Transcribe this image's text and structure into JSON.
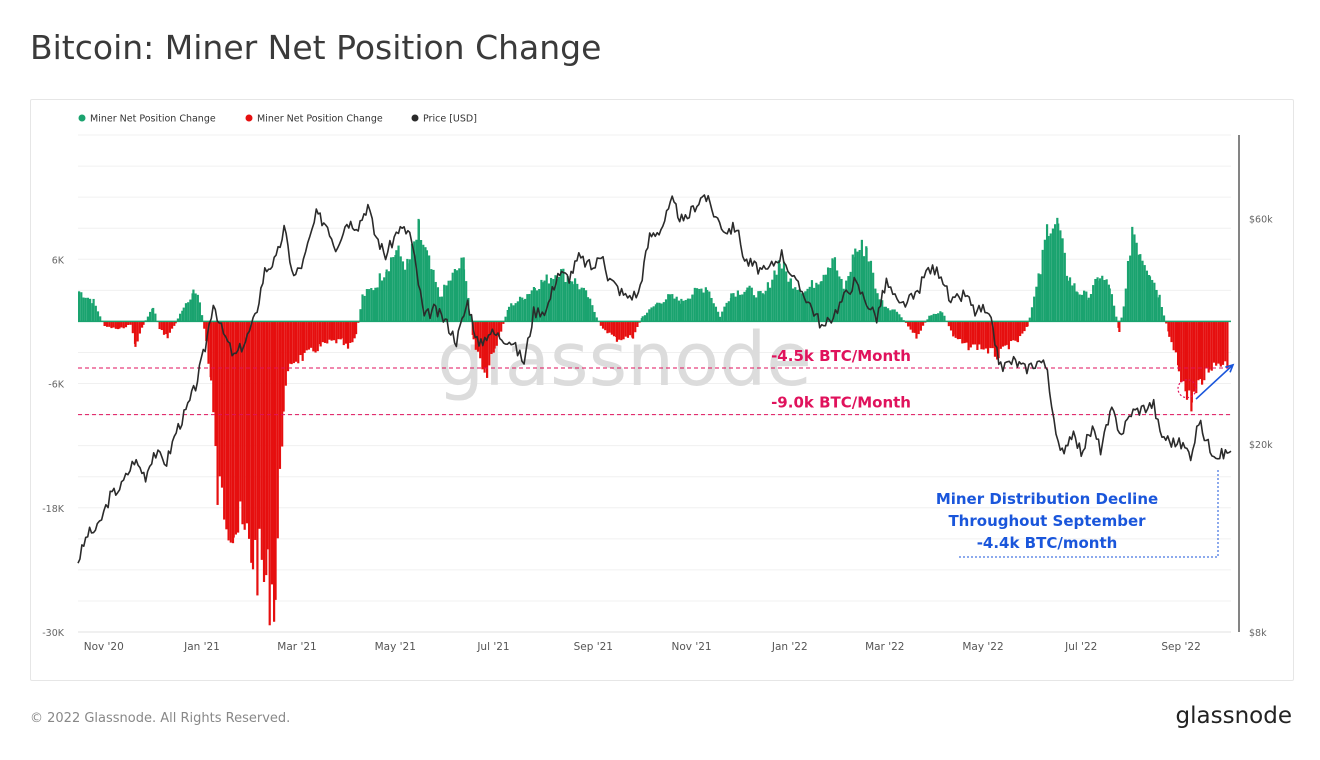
{
  "page": {
    "title": "Bitcoin: Miner Net Position Change",
    "copyright": "© 2022 Glassnode. All Rights Reserved.",
    "brand": "glassnode",
    "watermark": "glassnode"
  },
  "colors": {
    "positive": "#1aa36f",
    "negative": "#e60f0f",
    "price": "#2b2b2b",
    "annotation_pink": "#e0125c",
    "annotation_blue": "#1a56db"
  },
  "chart_data": {
    "type": "bar",
    "legend": [
      {
        "name": "Miner Net Position Change",
        "color": "#1aa36f"
      },
      {
        "name": "Miner Net Position Change",
        "color": "#e60f0f"
      },
      {
        "name": "Price [USD]",
        "color": "#2b2b2b"
      }
    ],
    "legend_position": "top-left",
    "x_range": [
      "2020-10-16",
      "2022-10-02"
    ],
    "x_ticks": [
      "Nov '20",
      "Jan '21",
      "Mar '21",
      "May '21",
      "Jul '21",
      "Sep '21",
      "Nov '21",
      "Jan '22",
      "Mar '22",
      "May '22",
      "Jul '22",
      "Sep '22"
    ],
    "x_tick_dates": [
      "2020-11-01",
      "2021-01-01",
      "2021-03-01",
      "2021-05-01",
      "2021-07-01",
      "2021-09-01",
      "2021-11-01",
      "2022-01-01",
      "2022-03-01",
      "2022-05-01",
      "2022-07-01",
      "2022-09-01"
    ],
    "left_axis": {
      "ticks": [
        "6K",
        "-6K",
        "-18K",
        "-30K"
      ],
      "tick_values": [
        6000,
        -6000,
        -18000,
        -30000
      ],
      "range": [
        -30000,
        18000
      ]
    },
    "right_axis": {
      "scale": "log",
      "ticks": [
        "$60k",
        "$20k",
        "$8k"
      ],
      "tick_values": [
        60000,
        20000,
        8000
      ],
      "range": [
        8000,
        90000
      ]
    },
    "grid": true,
    "net_position": [
      [
        "2020-10-16",
        3000
      ],
      [
        "2020-10-25",
        2000
      ],
      [
        "2020-11-01",
        -500
      ],
      [
        "2020-11-10",
        -800
      ],
      [
        "2020-11-17",
        -300
      ],
      [
        "2020-11-20",
        -2500
      ],
      [
        "2020-11-25",
        -300
      ],
      [
        "2020-12-01",
        1500
      ],
      [
        "2020-12-05",
        -800
      ],
      [
        "2020-12-10",
        -1500
      ],
      [
        "2020-12-15",
        -200
      ],
      [
        "2020-12-20",
        1500
      ],
      [
        "2020-12-26",
        3000
      ],
      [
        "2020-12-30",
        2000
      ],
      [
        "2021-01-03",
        -2000
      ],
      [
        "2021-01-06",
        -6000
      ],
      [
        "2021-01-10",
        -17000
      ],
      [
        "2021-01-20",
        -20000
      ],
      [
        "2021-02-01",
        -23000
      ],
      [
        "2021-02-10",
        -26000
      ],
      [
        "2021-02-15",
        -27000
      ],
      [
        "2021-02-20",
        -8000
      ],
      [
        "2021-02-25",
        -4000
      ],
      [
        "2021-03-05",
        -3500
      ],
      [
        "2021-03-15",
        -2500
      ],
      [
        "2021-03-22",
        -2000
      ],
      [
        "2021-03-28",
        -2000
      ],
      [
        "2021-04-01",
        -2800
      ],
      [
        "2021-04-06",
        -1500
      ],
      [
        "2021-04-10",
        2500
      ],
      [
        "2021-04-18",
        3500
      ],
      [
        "2021-04-25",
        5500
      ],
      [
        "2021-05-01",
        7000
      ],
      [
        "2021-05-08",
        5500
      ],
      [
        "2021-05-15",
        9000
      ],
      [
        "2021-05-20",
        6500
      ],
      [
        "2021-05-28",
        2500
      ],
      [
        "2021-06-05",
        4500
      ],
      [
        "2021-06-12",
        6000
      ],
      [
        "2021-06-18",
        -2000
      ],
      [
        "2021-06-25",
        -5500
      ],
      [
        "2021-07-01",
        -3000
      ],
      [
        "2021-07-10",
        1500
      ],
      [
        "2021-07-20",
        2500
      ],
      [
        "2021-07-26",
        3500
      ],
      [
        "2021-08-01",
        4000
      ],
      [
        "2021-08-10",
        5000
      ],
      [
        "2021-08-20",
        4000
      ],
      [
        "2021-08-28",
        2500
      ],
      [
        "2021-09-05",
        -500
      ],
      [
        "2021-09-15",
        -1800
      ],
      [
        "2021-09-25",
        -1500
      ],
      [
        "2021-10-01",
        500
      ],
      [
        "2021-10-10",
        1800
      ],
      [
        "2021-10-18",
        2500
      ],
      [
        "2021-10-25",
        2000
      ],
      [
        "2021-11-01",
        2800
      ],
      [
        "2021-11-10",
        3500
      ],
      [
        "2021-11-18",
        500
      ],
      [
        "2021-11-25",
        2800
      ],
      [
        "2021-12-05",
        3200
      ],
      [
        "2021-12-15",
        2500
      ],
      [
        "2021-12-25",
        6000
      ],
      [
        "2022-01-01",
        4000
      ],
      [
        "2022-01-10",
        3000
      ],
      [
        "2022-01-20",
        4500
      ],
      [
        "2022-01-27",
        6500
      ],
      [
        "2022-02-03",
        3000
      ],
      [
        "2022-02-10",
        7000
      ],
      [
        "2022-02-17",
        7500
      ],
      [
        "2022-02-24",
        2500
      ],
      [
        "2022-03-01",
        1500
      ],
      [
        "2022-03-08",
        1000
      ],
      [
        "2022-03-15",
        -500
      ],
      [
        "2022-03-20",
        -1500
      ],
      [
        "2022-03-28",
        500
      ],
      [
        "2022-04-05",
        1000
      ],
      [
        "2022-04-12",
        -1500
      ],
      [
        "2022-04-20",
        -2500
      ],
      [
        "2022-04-28",
        -2500
      ],
      [
        "2022-05-05",
        -3000
      ],
      [
        "2022-05-10",
        -3500
      ],
      [
        "2022-05-15",
        -2500
      ],
      [
        "2022-05-22",
        -2000
      ],
      [
        "2022-05-28",
        -500
      ],
      [
        "2022-06-05",
        5000
      ],
      [
        "2022-06-10",
        10000
      ],
      [
        "2022-06-16",
        9500
      ],
      [
        "2022-06-22",
        4500
      ],
      [
        "2022-06-28",
        3000
      ],
      [
        "2022-07-05",
        2500
      ],
      [
        "2022-07-12",
        4500
      ],
      [
        "2022-07-18",
        3500
      ],
      [
        "2022-07-24",
        -1000
      ],
      [
        "2022-07-28",
        3000
      ],
      [
        "2022-08-01",
        9500
      ],
      [
        "2022-08-06",
        7000
      ],
      [
        "2022-08-12",
        5000
      ],
      [
        "2022-08-18",
        2500
      ],
      [
        "2022-08-24",
        -1500
      ],
      [
        "2022-08-30",
        -4500
      ],
      [
        "2022-09-04",
        -7500
      ],
      [
        "2022-09-07",
        -8000
      ],
      [
        "2022-09-12",
        -6500
      ],
      [
        "2022-09-18",
        -4500
      ],
      [
        "2022-09-25",
        -4000
      ],
      [
        "2022-09-30",
        -4200
      ]
    ],
    "price": [
      [
        "2020-10-16",
        11300
      ],
      [
        "2020-10-22",
        12900
      ],
      [
        "2020-10-28",
        13200
      ],
      [
        "2020-11-05",
        15500
      ],
      [
        "2020-11-12",
        16300
      ],
      [
        "2020-11-20",
        18500
      ],
      [
        "2020-11-27",
        17100
      ],
      [
        "2020-12-02",
        19200
      ],
      [
        "2020-12-10",
        18300
      ],
      [
        "2020-12-16",
        21300
      ],
      [
        "2020-12-22",
        23400
      ],
      [
        "2020-12-28",
        26500
      ],
      [
        "2021-01-03",
        32000
      ],
      [
        "2021-01-08",
        40000
      ],
      [
        "2021-01-13",
        35000
      ],
      [
        "2021-01-21",
        30500
      ],
      [
        "2021-01-28",
        33000
      ],
      [
        "2021-02-03",
        37000
      ],
      [
        "2021-02-09",
        46500
      ],
      [
        "2021-02-16",
        49000
      ],
      [
        "2021-02-21",
        57000
      ],
      [
        "2021-02-27",
        45000
      ],
      [
        "2021-03-05",
        48500
      ],
      [
        "2021-03-13",
        61000
      ],
      [
        "2021-03-20",
        58000
      ],
      [
        "2021-03-25",
        52000
      ],
      [
        "2021-04-01",
        59000
      ],
      [
        "2021-04-08",
        58000
      ],
      [
        "2021-04-14",
        64000
      ],
      [
        "2021-04-18",
        56000
      ],
      [
        "2021-04-25",
        50000
      ],
      [
        "2021-05-03",
        57000
      ],
      [
        "2021-05-10",
        56000
      ],
      [
        "2021-05-13",
        49000
      ],
      [
        "2021-05-19",
        37000
      ],
      [
        "2021-05-25",
        38500
      ],
      [
        "2021-06-01",
        36500
      ],
      [
        "2021-06-08",
        33000
      ],
      [
        "2021-06-15",
        40000
      ],
      [
        "2021-06-22",
        32000
      ],
      [
        "2021-06-28",
        34500
      ],
      [
        "2021-07-05",
        33800
      ],
      [
        "2021-07-12",
        33000
      ],
      [
        "2021-07-20",
        29800
      ],
      [
        "2021-07-26",
        38000
      ],
      [
        "2021-08-03",
        38500
      ],
      [
        "2021-08-10",
        46000
      ],
      [
        "2021-08-17",
        45000
      ],
      [
        "2021-08-23",
        49500
      ],
      [
        "2021-09-01",
        47000
      ],
      [
        "2021-09-07",
        51000
      ],
      [
        "2021-09-10",
        45000
      ],
      [
        "2021-09-21",
        41000
      ],
      [
        "2021-09-29",
        41500
      ],
      [
        "2021-10-06",
        55000
      ],
      [
        "2021-10-13",
        57000
      ],
      [
        "2021-10-20",
        65000
      ],
      [
        "2021-10-27",
        58500
      ],
      [
        "2021-11-02",
        63000
      ],
      [
        "2021-11-09",
        67500
      ],
      [
        "2021-11-16",
        60500
      ],
      [
        "2021-11-22",
        56500
      ],
      [
        "2021-11-29",
        57500
      ],
      [
        "2021-12-04",
        49000
      ],
      [
        "2021-12-10",
        47500
      ],
      [
        "2021-12-17",
        46000
      ],
      [
        "2021-12-27",
        50500
      ],
      [
        "2022-01-05",
        43500
      ],
      [
        "2022-01-10",
        41500
      ],
      [
        "2022-01-22",
        35000
      ],
      [
        "2022-01-28",
        37500
      ],
      [
        "2022-02-05",
        41500
      ],
      [
        "2022-02-10",
        44000
      ],
      [
        "2022-02-24",
        37000
      ],
      [
        "2022-03-02",
        44000
      ],
      [
        "2022-03-10",
        39000
      ],
      [
        "2022-03-20",
        41000
      ],
      [
        "2022-03-28",
        47000
      ],
      [
        "2022-04-05",
        46000
      ],
      [
        "2022-04-11",
        39500
      ],
      [
        "2022-04-20",
        41500
      ],
      [
        "2022-04-26",
        38000
      ],
      [
        "2022-05-01",
        38500
      ],
      [
        "2022-05-06",
        36000
      ],
      [
        "2022-05-12",
        29000
      ],
      [
        "2022-05-20",
        30000
      ],
      [
        "2022-05-27",
        28800
      ],
      [
        "2022-06-05",
        30000
      ],
      [
        "2022-06-10",
        29000
      ],
      [
        "2022-06-14",
        22000
      ],
      [
        "2022-06-18",
        19000
      ],
      [
        "2022-06-25",
        21000
      ],
      [
        "2022-07-01",
        19300
      ],
      [
        "2022-07-08",
        21500
      ],
      [
        "2022-07-13",
        19500
      ],
      [
        "2022-07-20",
        23500
      ],
      [
        "2022-07-26",
        21000
      ],
      [
        "2022-08-01",
        23300
      ],
      [
        "2022-08-10",
        23900
      ],
      [
        "2022-08-15",
        24300
      ],
      [
        "2022-08-19",
        21000
      ],
      [
        "2022-08-26",
        20200
      ],
      [
        "2022-09-01",
        20000
      ],
      [
        "2022-09-07",
        19000
      ],
      [
        "2022-09-12",
        22300
      ],
      [
        "2022-09-19",
        19500
      ],
      [
        "2022-09-25",
        18900
      ],
      [
        "2022-10-02",
        19300
      ]
    ],
    "annotations": [
      {
        "text": "-4.5k BTC/Month",
        "value": -4500
      },
      {
        "text": "-9.0k BTC/Month",
        "value": -9000
      },
      {
        "lines": [
          "Miner Distribution Decline",
          "Throughout September",
          "-4.4k BTC/month"
        ]
      }
    ]
  }
}
